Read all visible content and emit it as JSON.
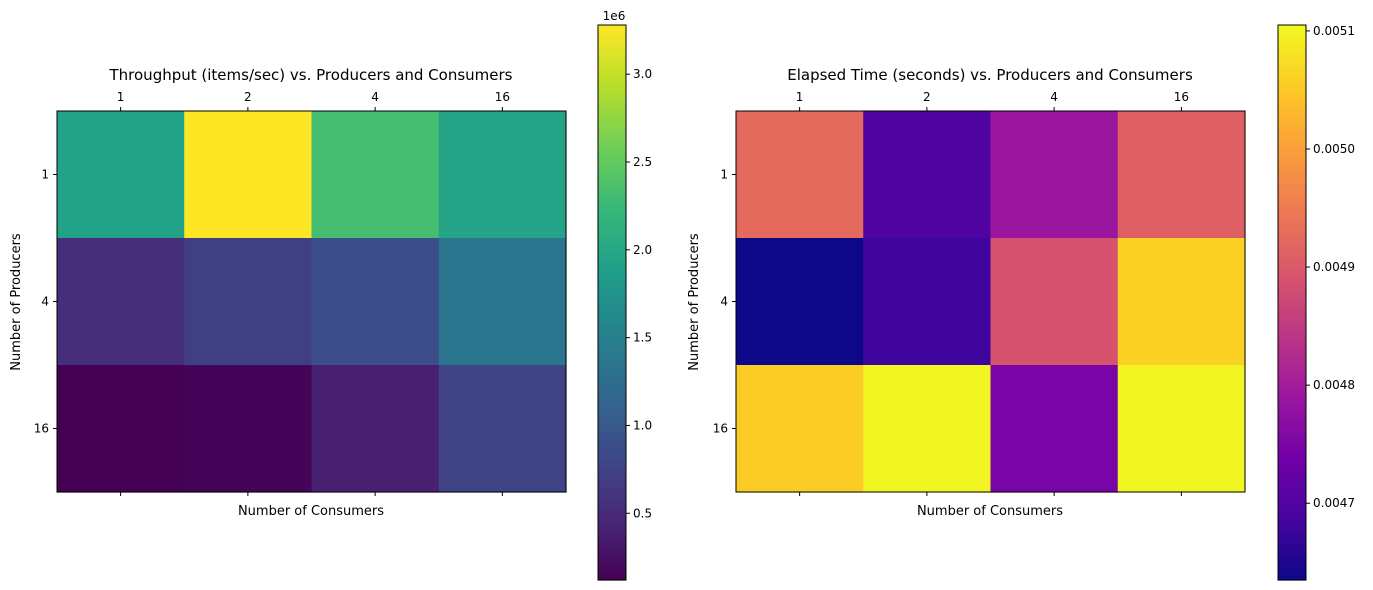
{
  "chart_data": [
    {
      "type": "heatmap",
      "title": "Throughput (items/sec) vs. Producers and Consumers",
      "xlabel": "Number of Consumers",
      "ylabel": "Number of Producers",
      "x_ticks": [
        "1",
        "2",
        "4",
        "16"
      ],
      "y_ticks": [
        "1",
        "4",
        "16"
      ],
      "values": [
        [
          1930000.0,
          3280000.0,
          2320000.0,
          1950000.0
        ],
        [
          530000.0,
          720000.0,
          860000.0,
          1350000.0
        ],
        [
          120000.0,
          160000.0,
          400000.0,
          760000.0
        ]
      ],
      "colormap": "viridis",
      "colorbar": {
        "min": 120000.0,
        "max": 3280000.0,
        "ticks": [
          0.5,
          1.0,
          1.5,
          2.0,
          2.5,
          3.0
        ],
        "tick_labels": [
          "0.5",
          "1.0",
          "1.5",
          "2.0",
          "2.5",
          "3.0"
        ],
        "offset_label": "1e6"
      }
    },
    {
      "type": "heatmap",
      "title": "Elapsed Time (seconds) vs. Producers and Consumers",
      "xlabel": "Number of Consumers",
      "ylabel": "Number of Producers",
      "x_ticks": [
        "1",
        "2",
        "4",
        "16"
      ],
      "y_ticks": [
        "1",
        "4",
        "16"
      ],
      "values": [
        [
          0.004925,
          0.0047,
          0.00479,
          0.00491
        ],
        [
          0.004635,
          0.00468,
          0.00489,
          0.00506
        ],
        [
          0.005055,
          0.0051,
          0.00475,
          0.0051
        ]
      ],
      "colormap": "plasma",
      "colorbar": {
        "min": 0.004635,
        "max": 0.005105,
        "ticks": [
          0.0047,
          0.0048,
          0.0049,
          0.005,
          0.0051
        ],
        "tick_labels": [
          "0.0047",
          "0.0048",
          "0.0049",
          "0.0050",
          "0.0051"
        ],
        "offset_label": ""
      }
    }
  ]
}
